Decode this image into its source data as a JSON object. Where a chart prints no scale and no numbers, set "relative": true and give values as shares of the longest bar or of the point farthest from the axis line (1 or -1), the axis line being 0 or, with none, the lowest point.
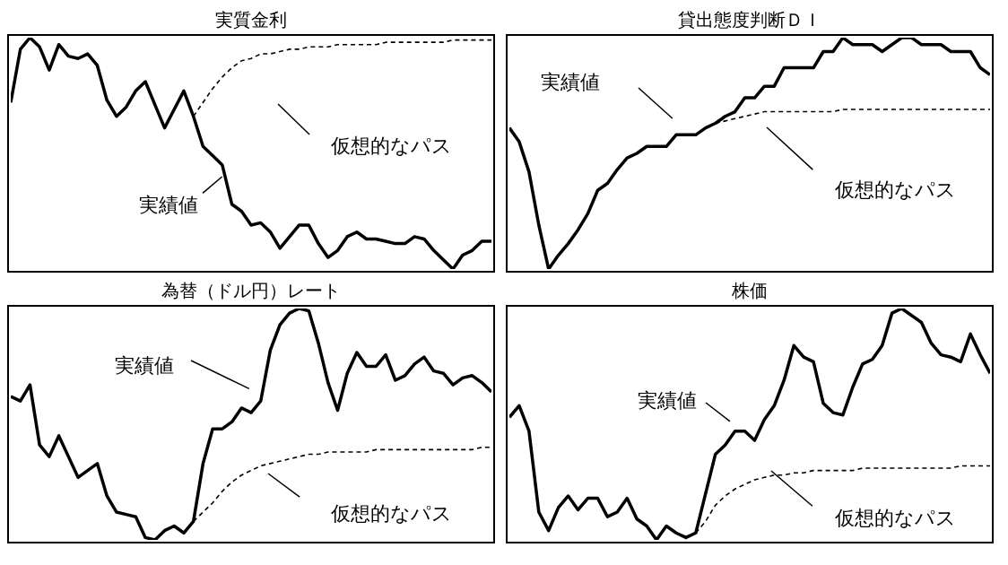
{
  "chart_data": [
    {
      "type": "line",
      "title": "実質金利",
      "relative": true,
      "marker": "none",
      "categories": [
        null,
        null,
        null,
        null,
        null,
        null,
        null,
        null,
        null,
        null,
        null,
        null,
        null,
        null,
        null,
        null,
        null,
        null,
        null,
        null,
        null,
        null,
        null,
        null,
        null,
        null,
        null,
        null,
        null,
        null,
        null,
        null,
        null,
        null,
        null,
        null,
        null,
        null,
        null,
        null,
        null,
        null,
        null,
        null,
        null,
        null,
        null,
        null,
        null,
        null,
        null
      ],
      "series": [
        {
          "name": "実績値",
          "color": "#000000",
          "line_style": "solid",
          "values": [
            0.72,
            0.95,
            1,
            0.96,
            0.86,
            0.97,
            0.92,
            0.91,
            0.93,
            0.88,
            0.73,
            0.66,
            0.7,
            0.77,
            0.81,
            0.71,
            0.61,
            0.69,
            0.77,
            0.66,
            0.53,
            0.49,
            0.45,
            0.28,
            0.25,
            0.19,
            0.2,
            0.16,
            0.09,
            0.14,
            0.19,
            0.19,
            0.11,
            0.05,
            0.08,
            0.14,
            0.16,
            0.13,
            0.13,
            0.12,
            0.11,
            0.11,
            0.14,
            0.13,
            0.08,
            0.04,
            0,
            0.06,
            0.08,
            0.12,
            0.12
          ]
        },
        {
          "name": "仮想的なパス",
          "color": "#000000",
          "line_style": "dashed",
          "values": [
            null,
            null,
            null,
            null,
            null,
            null,
            null,
            null,
            null,
            null,
            null,
            null,
            null,
            null,
            null,
            null,
            null,
            null,
            null,
            0.66,
            0.72,
            0.78,
            0.83,
            0.87,
            0.9,
            0.91,
            0.93,
            0.93,
            0.94,
            0.95,
            0.95,
            0.96,
            0.96,
            0.96,
            0.97,
            0.97,
            0.97,
            0.97,
            0.97,
            0.98,
            0.98,
            0.98,
            0.98,
            0.98,
            0.98,
            0.98,
            0.99,
            0.99,
            0.99,
            0.99,
            0.99
          ]
        }
      ]
    },
    {
      "type": "line",
      "title": "貸出態度判断ＤＩ",
      "relative": true,
      "marker": "none",
      "categories": [
        null,
        null,
        null,
        null,
        null,
        null,
        null,
        null,
        null,
        null,
        null,
        null,
        null,
        null,
        null,
        null,
        null,
        null,
        null,
        null,
        null,
        null,
        null,
        null,
        null,
        null,
        null,
        null,
        null,
        null,
        null,
        null,
        null,
        null,
        null,
        null,
        null,
        null,
        null,
        null,
        null,
        null,
        null,
        null,
        null,
        null,
        null,
        null,
        null,
        null
      ],
      "series": [
        {
          "name": "実績値",
          "color": "#000000",
          "line_style": "solid",
          "values": [
            0.61,
            0.55,
            0.42,
            0.19,
            0,
            0.06,
            0.11,
            0.17,
            0.24,
            0.34,
            0.37,
            0.43,
            0.48,
            0.5,
            0.53,
            0.53,
            0.53,
            0.58,
            0.58,
            0.58,
            0.61,
            0.63,
            0.66,
            0.68,
            0.74,
            0.74,
            0.79,
            0.79,
            0.87,
            0.87,
            0.87,
            0.87,
            0.94,
            0.94,
            1,
            0.97,
            0.97,
            0.97,
            0.94,
            0.97,
            1,
            1,
            0.97,
            0.97,
            0.97,
            0.94,
            0.94,
            0.94,
            0.87,
            0.84
          ]
        },
        {
          "name": "仮想的なパス",
          "color": "#000000",
          "line_style": "dashed",
          "values": [
            null,
            null,
            null,
            null,
            null,
            null,
            null,
            null,
            null,
            null,
            null,
            null,
            null,
            null,
            null,
            null,
            null,
            null,
            null,
            null,
            null,
            0.63,
            0.64,
            0.65,
            0.66,
            0.67,
            0.68,
            0.68,
            0.68,
            0.68,
            0.68,
            0.68,
            0.68,
            0.68,
            0.69,
            0.69,
            0.69,
            0.69,
            0.69,
            0.69,
            0.69,
            0.69,
            0.69,
            0.69,
            0.69,
            0.69,
            0.69,
            0.69,
            0.69,
            0.69
          ]
        }
      ]
    },
    {
      "type": "line",
      "title": "為替（ドル円）レート",
      "relative": true,
      "marker": "none",
      "categories": [
        null,
        null,
        null,
        null,
        null,
        null,
        null,
        null,
        null,
        null,
        null,
        null,
        null,
        null,
        null,
        null,
        null,
        null,
        null,
        null,
        null,
        null,
        null,
        null,
        null,
        null,
        null,
        null,
        null,
        null,
        null,
        null,
        null,
        null,
        null,
        null,
        null,
        null,
        null,
        null,
        null,
        null,
        null,
        null,
        null,
        null,
        null,
        null,
        null,
        null,
        null
      ],
      "series": [
        {
          "name": "実績値",
          "color": "#000000",
          "line_style": "solid",
          "values": [
            0.62,
            0.6,
            0.67,
            0.41,
            0.36,
            0.45,
            0.36,
            0.27,
            0.3,
            0.33,
            0.19,
            0.12,
            0.11,
            0.1,
            0.01,
            0,
            0.04,
            0.06,
            0.03,
            0.08,
            0.33,
            0.48,
            0.48,
            0.51,
            0.57,
            0.55,
            0.6,
            0.82,
            0.93,
            0.98,
            1,
            0.99,
            0.85,
            0.68,
            0.56,
            0.72,
            0.81,
            0.75,
            0.75,
            0.8,
            0.69,
            0.71,
            0.76,
            0.79,
            0.73,
            0.72,
            0.67,
            0.7,
            0.71,
            0.68,
            0.64
          ]
        },
        {
          "name": "仮想的なパス",
          "color": "#000000",
          "line_style": "dashed",
          "values": [
            null,
            null,
            null,
            null,
            null,
            null,
            null,
            null,
            null,
            null,
            null,
            null,
            null,
            null,
            null,
            null,
            null,
            null,
            null,
            0.08,
            0.12,
            0.16,
            0.21,
            0.25,
            0.28,
            0.3,
            0.32,
            0.33,
            0.34,
            0.35,
            0.36,
            0.37,
            0.37,
            0.38,
            0.38,
            0.38,
            0.38,
            0.38,
            0.39,
            0.39,
            0.39,
            0.39,
            0.39,
            0.39,
            0.39,
            0.39,
            0.39,
            0.39,
            0.39,
            0.4,
            0.4
          ]
        }
      ]
    },
    {
      "type": "line",
      "title": "株価",
      "relative": true,
      "marker": "none",
      "categories": [
        null,
        null,
        null,
        null,
        null,
        null,
        null,
        null,
        null,
        null,
        null,
        null,
        null,
        null,
        null,
        null,
        null,
        null,
        null,
        null,
        null,
        null,
        null,
        null,
        null,
        null,
        null,
        null,
        null,
        null,
        null,
        null,
        null,
        null,
        null,
        null,
        null,
        null,
        null,
        null,
        null,
        null,
        null,
        null,
        null,
        null,
        null,
        null,
        null,
        null
      ],
      "series": [
        {
          "name": "実績値",
          "color": "#000000",
          "line_style": "solid",
          "values": [
            0.53,
            0.58,
            0.47,
            0.12,
            0.04,
            0.14,
            0.19,
            0.13,
            0.18,
            0.18,
            0.1,
            0.12,
            0.18,
            0.09,
            0.06,
            0,
            0.06,
            0.03,
            0.01,
            0.03,
            0.2,
            0.37,
            0.41,
            0.47,
            0.47,
            0.43,
            0.52,
            0.58,
            0.69,
            0.84,
            0.79,
            0.77,
            0.59,
            0.55,
            0.54,
            0.66,
            0.76,
            0.78,
            0.84,
            0.98,
            1,
            0.97,
            0.94,
            0.85,
            0.8,
            0.79,
            0.77,
            0.89,
            0.8,
            0.72
          ]
        },
        {
          "name": "仮想的なパス",
          "color": "#000000",
          "line_style": "dashed",
          "values": [
            null,
            null,
            null,
            null,
            null,
            null,
            null,
            null,
            null,
            null,
            null,
            null,
            null,
            null,
            null,
            null,
            null,
            null,
            null,
            0.03,
            0.08,
            0.15,
            0.19,
            0.22,
            0.24,
            0.26,
            0.27,
            0.28,
            0.28,
            0.29,
            0.29,
            0.3,
            0.3,
            0.3,
            0.3,
            0.3,
            0.31,
            0.31,
            0.31,
            0.31,
            0.31,
            0.31,
            0.31,
            0.31,
            0.31,
            0.31,
            0.32,
            0.32,
            0.32,
            0.32
          ]
        }
      ]
    }
  ]
}
